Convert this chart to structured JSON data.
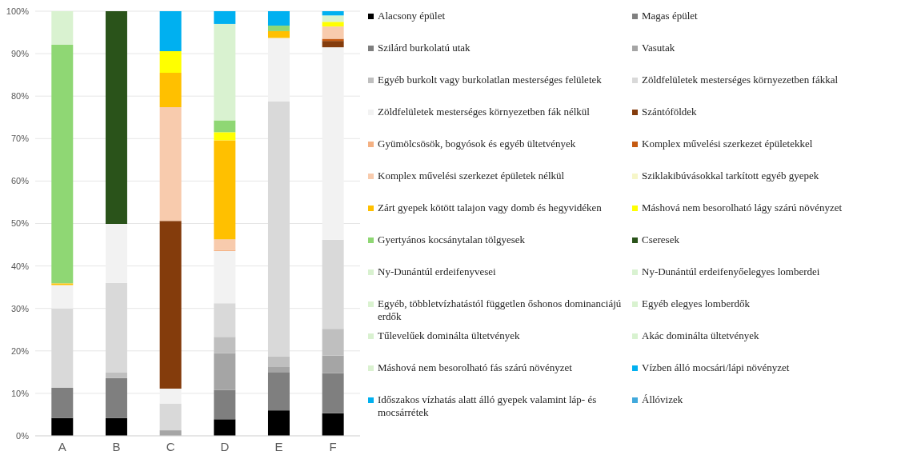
{
  "chart_data": {
    "type": "bar",
    "stacked": true,
    "categories": [
      "A",
      "B",
      "C",
      "D",
      "E",
      "F"
    ],
    "ylim": [
      0,
      100
    ],
    "yticks": [
      {
        "value": 0,
        "label": "0%"
      },
      {
        "value": 10,
        "label": "10%"
      },
      {
        "value": 20,
        "label": "20%"
      },
      {
        "value": 30,
        "label": "30%"
      },
      {
        "value": 40,
        "label": "40%"
      },
      {
        "value": 50,
        "label": "50%"
      },
      {
        "value": 60,
        "label": "60%"
      },
      {
        "value": 70,
        "label": "70%"
      },
      {
        "value": 80,
        "label": "80%"
      },
      {
        "value": 90,
        "label": "90%"
      },
      {
        "value": 100,
        "label": "100%"
      }
    ],
    "grid": "y",
    "legend": "right",
    "series": [
      {
        "name": "Alacsony épület",
        "color": "#000000",
        "values": [
          4.2,
          4.2,
          0,
          3.9,
          6.0,
          5.3
        ]
      },
      {
        "name": "Magas épület",
        "color": "#808080",
        "values": [
          0,
          0,
          0,
          0,
          0,
          0
        ]
      },
      {
        "name": "Szilárd burkolatú utak",
        "color": "#7f7f7f",
        "values": [
          7.1,
          9.4,
          0,
          6.9,
          9.0,
          9.5
        ]
      },
      {
        "name": "Vasutak",
        "color": "#a5a5a5",
        "values": [
          0,
          0,
          1.3,
          8.7,
          1.2,
          4.1
        ]
      },
      {
        "name": "Egyéb burkolt vagy burkolatlan mesterséges felületek",
        "color": "#bfbfbf",
        "values": [
          0,
          1.3,
          0,
          3.8,
          2.5,
          6.3
        ]
      },
      {
        "name": "Zöldfelületek mesterséges környezetben fákkal",
        "color": "#d9d9d9",
        "values": [
          18.7,
          21.1,
          6.3,
          7.9,
          60.0,
          21.0
        ]
      },
      {
        "name": "Zöldfelületek mesterséges környezetben fák nélkül",
        "color": "#f2f2f2",
        "values": [
          5.5,
          13.9,
          3.5,
          12.3,
          15.0,
          45.3
        ]
      },
      {
        "name": "Szántóföldek",
        "color": "#843c0c",
        "values": [
          0,
          0,
          39.5,
          0,
          0,
          1.5
        ]
      },
      {
        "name": "Gyümölcsösök, bogyósok és egyéb ültetvények",
        "color": "#f4b183",
        "values": [
          0,
          0,
          0,
          0.3,
          0,
          0
        ]
      },
      {
        "name": "Komplex művelési szerkezet épületekkel",
        "color": "#c55a11",
        "values": [
          0,
          0,
          0,
          0,
          0,
          0.5
        ]
      },
      {
        "name": "Komplex művelési szerkezet épületek nélkül",
        "color": "#f8cbad",
        "values": [
          0,
          0,
          26.8,
          2.5,
          0,
          2.9
        ]
      },
      {
        "name": "Sziklakibúvásokkal tarkított egyéb gyepek",
        "color": "#f6f6c8",
        "values": [
          0,
          0,
          0,
          0,
          0,
          0
        ]
      },
      {
        "name": "Zárt gyepek kötött talajon vagy domb és hegyvidéken",
        "color": "#ffc000",
        "values": [
          0.4,
          0,
          8.1,
          23.3,
          1.6,
          0
        ]
      },
      {
        "name": "Máshová nem besorolható lágy szárú növényzet",
        "color": "#ffff00",
        "values": [
          0,
          0,
          5.1,
          1.9,
          0,
          1.1
        ]
      },
      {
        "name": "Gyertyános kocsánytalan tölgyesek",
        "color": "#8fd774",
        "values": [
          56.2,
          0,
          0,
          2.8,
          1.3,
          0
        ]
      },
      {
        "name": "Cseresek",
        "color": "#2a531a",
        "values": [
          0,
          50.1,
          0,
          0,
          0,
          0
        ]
      },
      {
        "name": "Ny-Dunántúl erdeifenyvesei",
        "color": "#d8f1cf",
        "values": [
          0,
          0,
          0,
          0,
          0,
          0
        ]
      },
      {
        "name": "Ny-Dunántúl erdeifenyőelegyes lomberdei",
        "color": "#d9f2d1",
        "values": [
          0,
          0,
          0,
          0,
          0,
          0
        ]
      },
      {
        "name": "Egyéb, többletvízhatástól független őshonos dominanciájú erdők",
        "color": "#daf2d0",
        "values": [
          0,
          0,
          0,
          0,
          0,
          0
        ]
      },
      {
        "name": "Egyéb elegyes lomberdők",
        "color": "#d9f2d0",
        "values": [
          7.9,
          0,
          0,
          22.7,
          0,
          1.5
        ]
      },
      {
        "name": "Tűlevelűek dominálta ültetvények",
        "color": "#d9f1d0",
        "values": [
          0,
          0,
          0,
          0,
          0,
          0
        ]
      },
      {
        "name": "Akác dominálta ültetvények",
        "color": "#d8f2d0",
        "values": [
          0,
          0,
          0,
          0,
          0,
          0
        ]
      },
      {
        "name": "Máshová nem besorolható fás szárú növényzet",
        "color": "#daf1d0",
        "values": [
          0,
          0,
          0,
          0,
          0,
          0
        ]
      },
      {
        "name": "Vízben álló mocsári/lápi növényzet",
        "color": "#00b0f0",
        "values": [
          0,
          0,
          9.4,
          3.0,
          3.4,
          1.0
        ]
      },
      {
        "name": "Időszakos vízhatás alatt álló gyepek valamint láp- és mocsárrétek",
        "color": "#01b0ef",
        "values": [
          0,
          0,
          0,
          0,
          0,
          0
        ]
      },
      {
        "name": "Állóvizek",
        "color": "#41a9dc",
        "values": [
          0,
          0,
          0,
          0,
          0,
          0
        ]
      }
    ]
  }
}
